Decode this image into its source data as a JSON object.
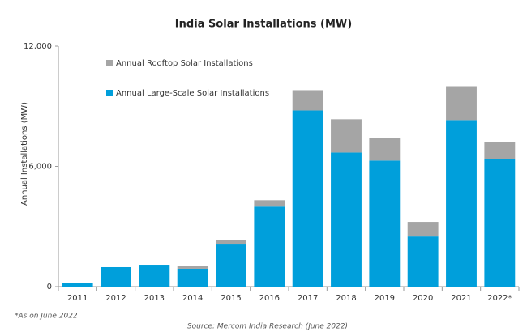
{
  "chart_data": {
    "type": "stacked-bar",
    "title": "India Solar Installations (MW)",
    "y_label": "Annual Installations (MW)",
    "categories": [
      "2011",
      "2012",
      "2013",
      "2014",
      "2015",
      "2016",
      "2017",
      "2018",
      "2019",
      "2020",
      "2021",
      "2022*"
    ],
    "series": [
      {
        "name": "Annual Large-Scale Solar Installations",
        "color": "#009fdb",
        "values": [
          200,
          970,
          1090,
          890,
          2140,
          3990,
          8790,
          6690,
          6290,
          2500,
          8310,
          6370
        ]
      },
      {
        "name": "Annual Rooftop Solar Installations",
        "color": "#a5a5a5",
        "values": [
          0,
          0,
          0,
          120,
          200,
          320,
          1010,
          1660,
          1130,
          730,
          1690,
          850
        ]
      }
    ],
    "ylim": [
      0,
      12000
    ],
    "yticks": [
      0,
      {
        "value": 6000,
        "label": "6,000"
      },
      {
        "value": 12000,
        "label": "12,000"
      }
    ],
    "grid": false,
    "footnote": "*As on June 2022",
    "source": "Source: Mercom India Research (June 2022)"
  }
}
